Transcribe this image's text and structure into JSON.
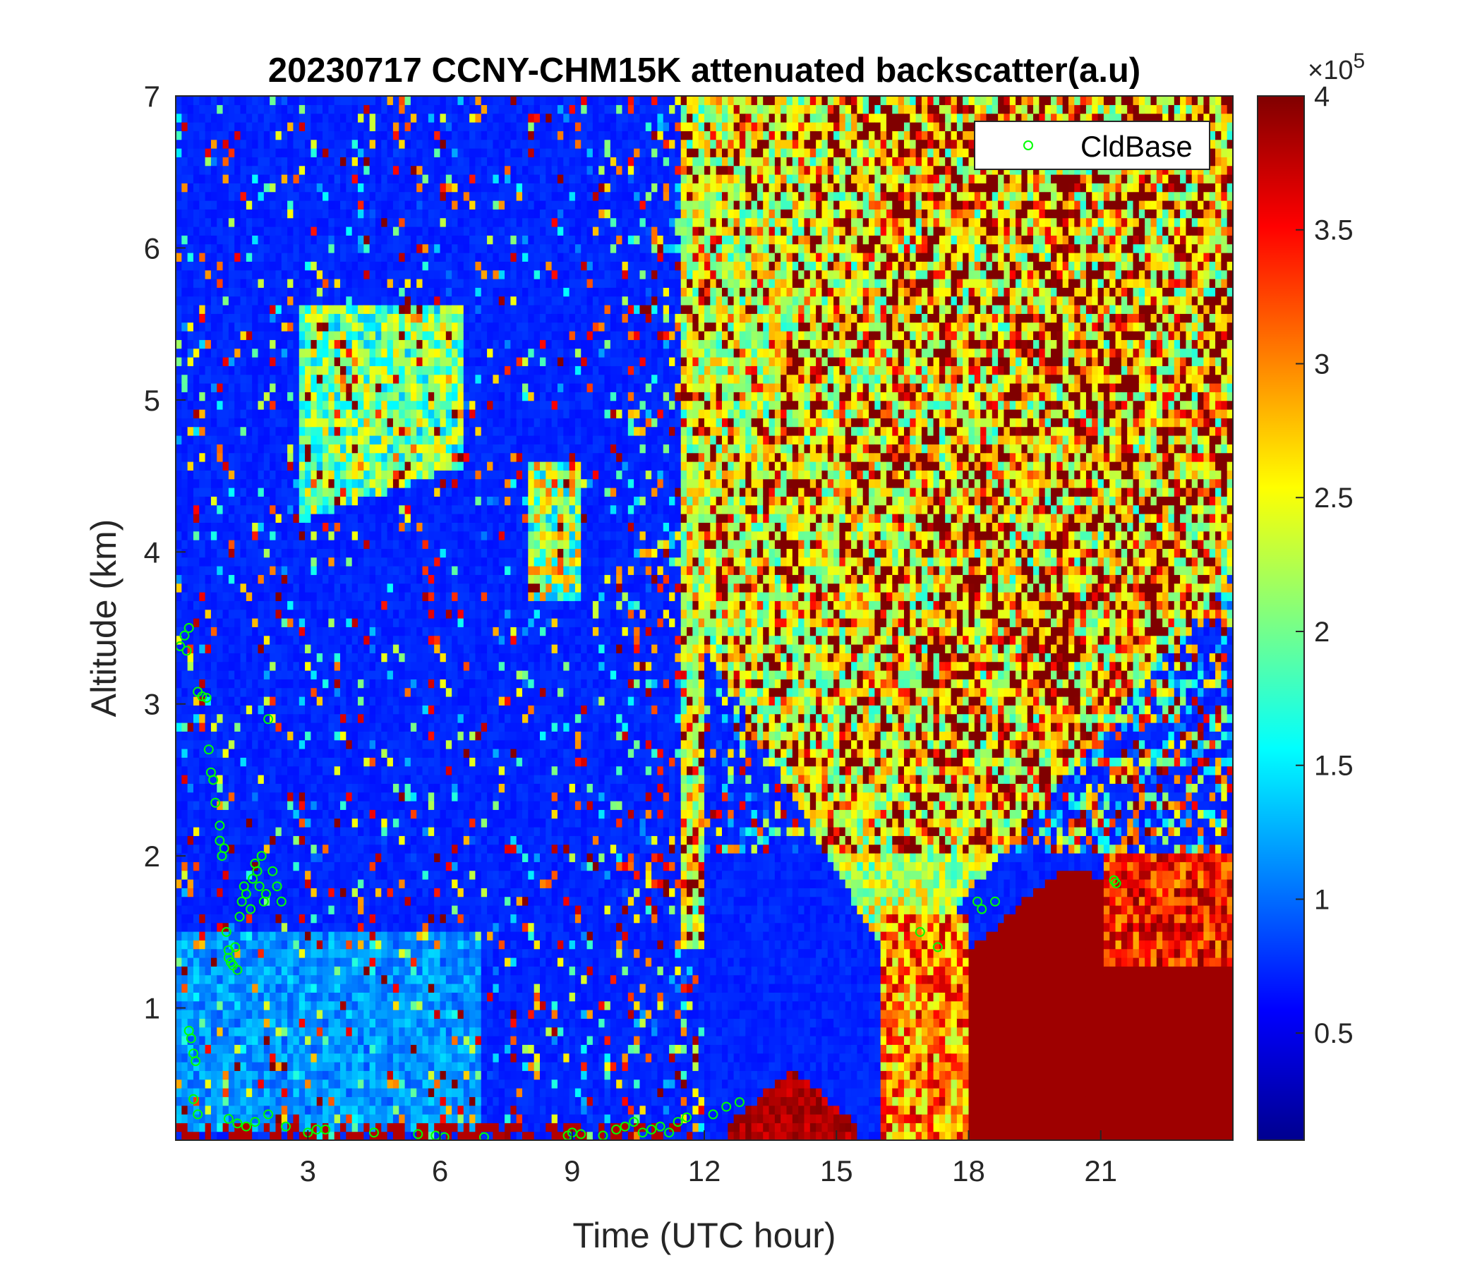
{
  "chart_data": {
    "type": "heatmap",
    "title": "20230717 CCNY-CHM15K attenuated backscatter(a.u)",
    "xlabel": "Time (UTC hour)",
    "ylabel": "Altitude (km)",
    "xlim": [
      0,
      24
    ],
    "ylim": [
      0.13,
      7
    ],
    "xticks": [
      3,
      6,
      9,
      12,
      15,
      18,
      21
    ],
    "xtick_labels": [
      "3",
      "6",
      "9",
      "12",
      "15",
      "18",
      "21"
    ],
    "yticks": [
      1,
      2,
      3,
      4,
      5,
      6,
      7
    ],
    "ytick_labels": [
      "1",
      "2",
      "3",
      "4",
      "5",
      "6",
      "7"
    ],
    "colorbar": {
      "colormap": "jet",
      "clim": [
        0.1,
        4
      ],
      "ticks": [
        0.5,
        1,
        1.5,
        2,
        2.5,
        3,
        3.5,
        4
      ],
      "tick_labels": [
        "0.5",
        "1",
        "1.5",
        "2",
        "2.5",
        "3",
        "3.5",
        "4"
      ],
      "exponent_prefix": "×10",
      "exponent_power": "5"
    },
    "legend": {
      "position": "top-right",
      "entries": [
        "CldBase"
      ]
    },
    "series": [
      {
        "name": "CldBase",
        "marker": "circle",
        "color": "#00ff00",
        "x": [
          0.1,
          0.2,
          0.25,
          0.3,
          0.5,
          0.6,
          0.7,
          0.75,
          0.8,
          0.85,
          0.9,
          1.0,
          1.0,
          1.05,
          1.1,
          1.15,
          1.2,
          1.2,
          1.25,
          1.3,
          1.35,
          1.4,
          1.45,
          1.5,
          1.55,
          1.6,
          1.7,
          1.75,
          1.8,
          1.85,
          1.9,
          1.95,
          2.0,
          2.05,
          2.1,
          2.2,
          2.3,
          2.4,
          0.3,
          0.35,
          0.4,
          0.45,
          0.4,
          0.5,
          1.2,
          1.4,
          1.6,
          1.8,
          2.1,
          2.5,
          3.0,
          3.2,
          3.4,
          4.5,
          5.5,
          5.9,
          6.1,
          7.0,
          8.9,
          9.0,
          9.2,
          9.7,
          10.0,
          10.2,
          10.4,
          10.6,
          10.8,
          11.0,
          11.2,
          11.4,
          11.6,
          12.2,
          12.5,
          12.8,
          16.9,
          17.3,
          18.2,
          18.3,
          18.6,
          21.3,
          21.35
        ],
        "y": [
          3.38,
          3.45,
          3.35,
          3.5,
          3.08,
          3.05,
          3.04,
          2.7,
          2.55,
          2.5,
          2.35,
          2.2,
          2.1,
          2.0,
          2.05,
          1.5,
          1.38,
          1.33,
          1.3,
          1.28,
          1.4,
          1.25,
          1.6,
          1.7,
          1.8,
          1.75,
          1.65,
          1.85,
          1.95,
          1.9,
          1.8,
          2.0,
          1.7,
          1.75,
          2.9,
          1.9,
          1.8,
          1.7,
          0.85,
          0.8,
          0.7,
          0.65,
          0.4,
          0.3,
          0.27,
          0.24,
          0.22,
          0.25,
          0.3,
          0.22,
          0.18,
          0.2,
          0.2,
          0.18,
          0.17,
          0.16,
          0.15,
          0.15,
          0.16,
          0.18,
          0.17,
          0.16,
          0.2,
          0.22,
          0.25,
          0.18,
          0.2,
          0.22,
          0.18,
          0.25,
          0.28,
          0.3,
          0.35,
          0.38,
          1.5,
          1.4,
          1.7,
          1.65,
          1.7,
          1.84,
          1.82
        ]
      }
    ]
  }
}
